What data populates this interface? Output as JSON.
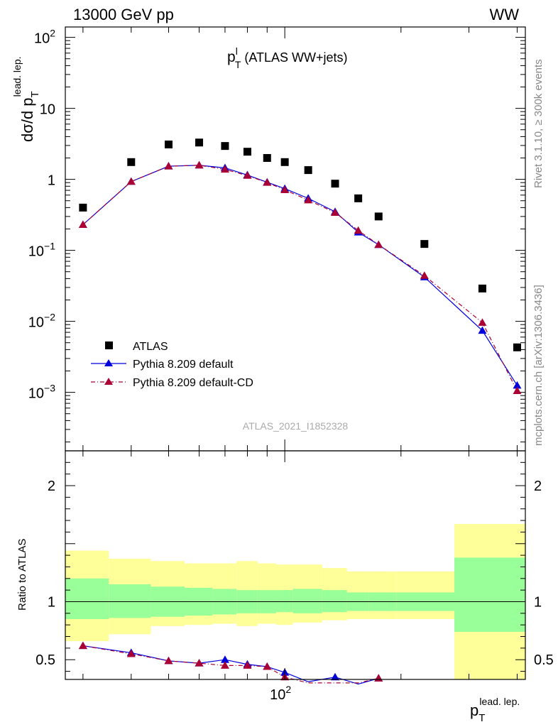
{
  "header": {
    "left": "13000 GeV pp",
    "right": "WW"
  },
  "side_labels": {
    "rivet": "Rivet 3.1.10, ≥ 300k events",
    "mcplots": "mcplots.cern.ch [arXiv:1306.3436]"
  },
  "watermark": "ATLAS_2021_I1852328",
  "colors": {
    "atlas": "#000000",
    "default": "#0000dd",
    "default_cd": "#aa0033",
    "band_inner": "#99ff99",
    "band_outer": "#ffff99"
  },
  "chart_data": [
    {
      "type": "scatter",
      "title_main": "p",
      "title_sup": "l",
      "title_sub": "T",
      "title_rest": " (ATLAS WW+jets)",
      "ylabel_main": "dσ/d p",
      "ylabel_sub": "T",
      "ylabel_sup": "lead. lep.",
      "xlabel_main": "p",
      "xlabel_sub": "T",
      "xlabel_sup": "lead. lep.",
      "xscale": "log",
      "yscale": "log",
      "xlim": [
        27,
        420
      ],
      "ylim": [
        0.00015,
        140
      ],
      "x_tick_labels": [
        {
          "value": 100,
          "base": "10",
          "exp": "2"
        }
      ],
      "y_tick_labels": [
        {
          "value": 0.001,
          "base": "10",
          "exp": "−3"
        },
        {
          "value": 0.01,
          "base": "10",
          "exp": "−2"
        },
        {
          "value": 0.1,
          "base": "10",
          "exp": "−1"
        },
        {
          "value": 1,
          "base": "1",
          "exp": ""
        },
        {
          "value": 10,
          "base": "10",
          "exp": ""
        },
        {
          "value": 100,
          "base": "10",
          "exp": "2"
        }
      ],
      "legend": {
        "position": "bottom-left",
        "entries": [
          "ATLAS",
          "Pythia 8.209 default",
          "Pythia 8.209 default-CD"
        ]
      },
      "series": [
        {
          "name": "ATLAS",
          "marker": "square",
          "x": [
            30,
            40,
            50,
            60,
            70,
            80,
            90,
            100,
            115,
            135,
            155,
            175,
            230,
            325,
            400
          ],
          "y": [
            0.4,
            1.75,
            3.1,
            3.3,
            2.95,
            2.45,
            2.0,
            1.75,
            1.35,
            0.87,
            0.54,
            0.3,
            0.123,
            0.029,
            0.0043
          ]
        },
        {
          "name": "Pythia 8.209 default",
          "marker": "triangle",
          "line": "solid",
          "x": [
            30,
            40,
            50,
            60,
            70,
            80,
            90,
            100,
            115,
            135,
            155,
            175,
            230,
            325,
            400
          ],
          "y": [
            0.23,
            0.93,
            1.53,
            1.58,
            1.45,
            1.15,
            0.91,
            0.74,
            0.54,
            0.35,
            0.18,
            0.12,
            0.042,
            0.0074,
            0.00125
          ]
        },
        {
          "name": "Pythia 8.209 default-CD",
          "marker": "triangle",
          "line": "dashdot",
          "x": [
            30,
            40,
            50,
            60,
            70,
            80,
            90,
            100,
            115,
            135,
            155,
            175,
            230,
            325,
            400
          ],
          "y": [
            0.23,
            0.93,
            1.53,
            1.58,
            1.38,
            1.13,
            0.9,
            0.71,
            0.51,
            0.34,
            0.19,
            0.12,
            0.044,
            0.0096,
            0.00105
          ]
        }
      ]
    },
    {
      "type": "line",
      "ylabel": "Ratio to ATLAS",
      "xscale": "log",
      "xlim": [
        27,
        420
      ],
      "ylim": [
        0.33,
        2.3
      ],
      "x_tick_labels": [
        {
          "value": 100,
          "base": "10",
          "exp": "2"
        }
      ],
      "y_tick_labels": [
        "0.5",
        "1",
        "2"
      ],
      "y_tick_values": [
        0.5,
        1,
        2
      ],
      "reference_line": 1,
      "bands": {
        "edges": [
          27,
          35,
          45,
          55,
          65,
          75,
          85,
          95,
          105,
          125,
          145,
          165,
          195,
          275,
          420
        ],
        "inner_lo": [
          0.85,
          0.86,
          0.87,
          0.88,
          0.89,
          0.9,
          0.9,
          0.91,
          0.9,
          0.91,
          0.92,
          0.92,
          0.92,
          0.74
        ],
        "inner_hi": [
          1.2,
          1.15,
          1.13,
          1.12,
          1.11,
          1.1,
          1.1,
          1.1,
          1.11,
          1.1,
          1.08,
          1.08,
          1.08,
          1.38
        ],
        "outer_lo": [
          0.66,
          0.72,
          0.79,
          0.8,
          0.81,
          0.79,
          0.81,
          0.8,
          0.82,
          0.84,
          0.85,
          0.85,
          0.85,
          0.33
        ],
        "outer_hi": [
          1.44,
          1.37,
          1.35,
          1.33,
          1.33,
          1.35,
          1.33,
          1.32,
          1.32,
          1.29,
          1.26,
          1.26,
          1.26,
          1.67
        ]
      },
      "series": [
        {
          "name": "Pythia 8.209 default",
          "marker": "triangle",
          "line": "solid",
          "x": [
            30,
            40,
            50,
            60,
            70,
            80,
            90,
            100,
            115,
            135,
            155,
            175
          ],
          "y": [
            0.62,
            0.56,
            0.49,
            0.47,
            0.5,
            0.46,
            0.44,
            0.39,
            0.31,
            0.35,
            0.29,
            0.34
          ]
        },
        {
          "name": "Pythia 8.209 default-CD",
          "marker": "triangle",
          "line": "dashdot",
          "x": [
            30,
            40,
            50,
            60,
            70,
            80,
            90,
            100,
            115,
            135,
            155,
            175
          ],
          "y": [
            0.62,
            0.55,
            0.49,
            0.47,
            0.45,
            0.45,
            0.44,
            0.35,
            0.3,
            0.3,
            0.3,
            0.34
          ]
        }
      ]
    }
  ]
}
